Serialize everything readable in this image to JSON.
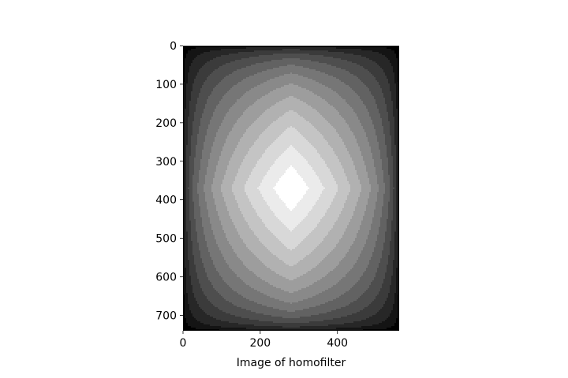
{
  "chart_data": {
    "type": "heatmap",
    "title": "",
    "xlabel": "Image of homofilter",
    "ylabel": "",
    "colormap": "gray",
    "levels": 14,
    "xlim": [
      0,
      560
    ],
    "ylim": [
      740,
      0
    ],
    "y_inverted": true,
    "x_ticks": [
      0,
      200,
      400
    ],
    "y_ticks": [
      0,
      100,
      200,
      300,
      400,
      500,
      600,
      700
    ],
    "image_shape": [
      740,
      560
    ],
    "peak_center": [
      280,
      370
    ],
    "grid": false
  }
}
